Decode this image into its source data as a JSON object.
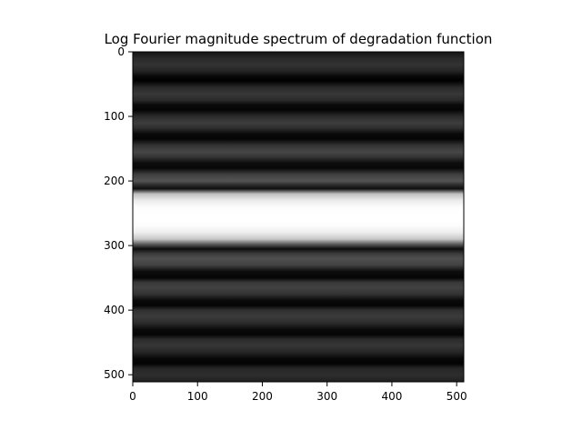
{
  "chart_data": {
    "type": "heatmap",
    "title": "Log Fourier magnitude spectrum of degradation function",
    "xlabel": "",
    "ylabel": "",
    "colormap": "gray",
    "xlim": [
      0,
      511
    ],
    "ylim": [
      511,
      0
    ],
    "x_ticks": [
      0,
      100,
      200,
      300,
      400,
      500
    ],
    "y_ticks": [
      0,
      100,
      200,
      300,
      400,
      500
    ],
    "grid": false,
    "legend": "none",
    "description_profile": {
      "axis": "y",
      "note": "Intensity is constant along x and varies with y (0 = black, 1 = white)",
      "y": [
        0,
        10,
        20,
        30,
        38,
        45,
        55,
        65,
        75,
        82,
        90,
        100,
        110,
        118,
        127,
        135,
        145,
        155,
        163,
        172,
        180,
        190,
        200,
        205,
        212,
        220,
        230,
        240,
        250,
        256,
        262,
        270,
        280,
        290,
        297,
        305,
        312,
        320,
        330,
        340,
        350,
        357,
        365,
        375,
        385,
        393,
        400,
        410,
        420,
        430,
        438,
        445,
        455,
        465,
        475,
        483,
        490,
        500,
        511
      ],
      "intensity": [
        0.08,
        0.16,
        0.2,
        0.14,
        0.03,
        0.0,
        0.16,
        0.22,
        0.16,
        0.04,
        0.02,
        0.17,
        0.24,
        0.18,
        0.04,
        0.02,
        0.2,
        0.28,
        0.2,
        0.05,
        0.03,
        0.25,
        0.33,
        0.2,
        0.05,
        0.75,
        0.92,
        0.99,
        1.0,
        1.0,
        1.0,
        0.99,
        0.93,
        0.78,
        0.4,
        0.05,
        0.22,
        0.31,
        0.26,
        0.05,
        0.02,
        0.22,
        0.26,
        0.2,
        0.04,
        0.02,
        0.19,
        0.23,
        0.17,
        0.04,
        0.02,
        0.17,
        0.21,
        0.15,
        0.03,
        0.01,
        0.15,
        0.18,
        0.12
      ]
    }
  }
}
